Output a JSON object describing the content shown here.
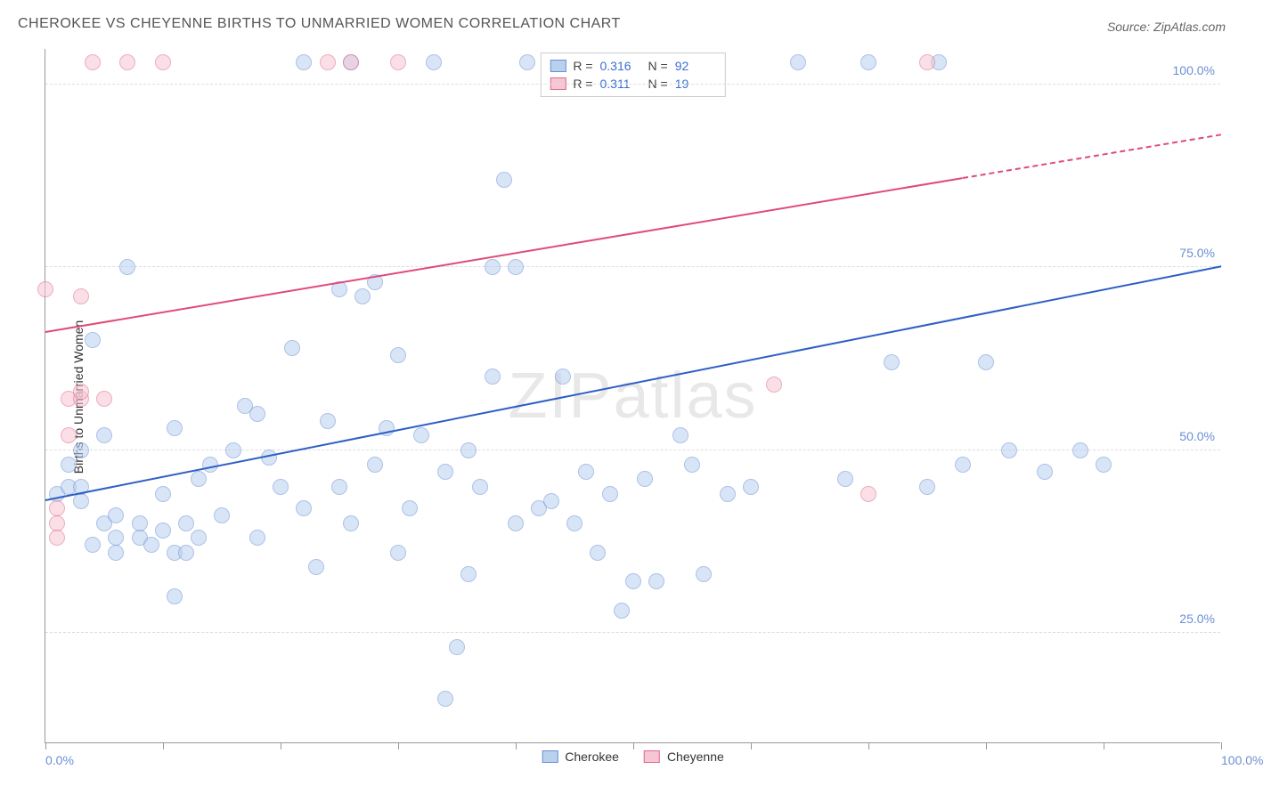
{
  "title": "CHEROKEE VS CHEYENNE BIRTHS TO UNMARRIED WOMEN CORRELATION CHART",
  "source_label": "Source: ZipAtlas.com",
  "watermark": "ZIPatlas",
  "ylabel": "Births to Unmarried Women",
  "chart": {
    "type": "scatter",
    "background_color": "#ffffff",
    "grid_color": "#dddddd",
    "axis_color": "#999999",
    "label_color": "#6b8fd4",
    "title_fontsize": 16,
    "label_fontsize": 14,
    "marker_radius": 9,
    "marker_opacity": 0.55,
    "xlim": [
      0,
      100
    ],
    "ylim": [
      10,
      105
    ],
    "xticks": [
      0,
      10,
      20,
      30,
      40,
      50,
      60,
      70,
      80,
      90,
      100
    ],
    "xtick_labels": {
      "0": "0.0%",
      "100": "100.0%"
    },
    "yticks": [
      25,
      50,
      75,
      100
    ],
    "ytick_labels": {
      "25": "25.0%",
      "50": "50.0%",
      "75": "75.0%",
      "100": "100.0%"
    },
    "legend_top": [
      {
        "swatch_fill": "#b9d0ef",
        "swatch_border": "#6b8fd4",
        "r_label": "R =",
        "r_value": "0.316",
        "n_label": "N =",
        "n_value": "92"
      },
      {
        "swatch_fill": "#f6c6d4",
        "swatch_border": "#e06a8a",
        "r_label": "R =",
        "r_value": "0.311",
        "n_label": "N =",
        "n_value": "19"
      }
    ],
    "legend_bottom": [
      {
        "swatch_fill": "#b9d0ef",
        "swatch_border": "#6b8fd4",
        "label": "Cherokee"
      },
      {
        "swatch_fill": "#f6c6d4",
        "swatch_border": "#e06a8a",
        "label": "Cheyenne"
      }
    ],
    "series": [
      {
        "name": "Cherokee",
        "marker_fill": "#b9d0ef",
        "marker_border": "#6b8fd4",
        "trend_color": "#2d5fc4",
        "trend": {
          "x1": 0,
          "y1": 43,
          "x2": 100,
          "y2": 75,
          "dash_from_x": null
        },
        "points": [
          [
            1,
            44
          ],
          [
            2,
            45
          ],
          [
            2,
            48
          ],
          [
            3,
            43
          ],
          [
            3,
            45
          ],
          [
            3,
            50
          ],
          [
            4,
            65
          ],
          [
            4,
            37
          ],
          [
            5,
            40
          ],
          [
            5,
            52
          ],
          [
            6,
            36
          ],
          [
            6,
            38
          ],
          [
            6,
            41
          ],
          [
            7,
            75
          ],
          [
            8,
            38
          ],
          [
            8,
            40
          ],
          [
            9,
            37
          ],
          [
            10,
            39
          ],
          [
            10,
            44
          ],
          [
            11,
            30
          ],
          [
            11,
            36
          ],
          [
            11,
            53
          ],
          [
            12,
            36
          ],
          [
            12,
            40
          ],
          [
            13,
            38
          ],
          [
            13,
            46
          ],
          [
            14,
            48
          ],
          [
            15,
            41
          ],
          [
            16,
            50
          ],
          [
            17,
            56
          ],
          [
            18,
            38
          ],
          [
            18,
            55
          ],
          [
            19,
            49
          ],
          [
            20,
            45
          ],
          [
            21,
            64
          ],
          [
            22,
            42
          ],
          [
            22,
            103
          ],
          [
            23,
            34
          ],
          [
            24,
            54
          ],
          [
            25,
            45
          ],
          [
            25,
            72
          ],
          [
            26,
            40
          ],
          [
            26,
            103
          ],
          [
            27,
            71
          ],
          [
            28,
            73
          ],
          [
            28,
            48
          ],
          [
            29,
            53
          ],
          [
            30,
            63
          ],
          [
            30,
            36
          ],
          [
            31,
            42
          ],
          [
            32,
            52
          ],
          [
            33,
            103
          ],
          [
            34,
            47
          ],
          [
            34,
            16
          ],
          [
            35,
            23
          ],
          [
            36,
            50
          ],
          [
            36,
            33
          ],
          [
            37,
            45
          ],
          [
            38,
            60
          ],
          [
            38,
            75
          ],
          [
            39,
            87
          ],
          [
            40,
            75
          ],
          [
            40,
            40
          ],
          [
            41,
            103
          ],
          [
            42,
            42
          ],
          [
            43,
            43
          ],
          [
            44,
            60
          ],
          [
            45,
            40
          ],
          [
            46,
            47
          ],
          [
            47,
            36
          ],
          [
            48,
            44
          ],
          [
            49,
            28
          ],
          [
            50,
            32
          ],
          [
            51,
            46
          ],
          [
            52,
            32
          ],
          [
            54,
            52
          ],
          [
            55,
            48
          ],
          [
            56,
            33
          ],
          [
            58,
            44
          ],
          [
            60,
            45
          ],
          [
            64,
            103
          ],
          [
            68,
            46
          ],
          [
            70,
            103
          ],
          [
            72,
            62
          ],
          [
            75,
            45
          ],
          [
            76,
            103
          ],
          [
            78,
            48
          ],
          [
            80,
            62
          ],
          [
            82,
            50
          ],
          [
            85,
            47
          ],
          [
            88,
            50
          ],
          [
            90,
            48
          ]
        ]
      },
      {
        "name": "Cheyenne",
        "marker_fill": "#f6c6d4",
        "marker_border": "#e06a8a",
        "trend_color": "#e04a78",
        "trend": {
          "x1": 0,
          "y1": 66,
          "x2": 100,
          "y2": 93,
          "dash_from_x": 78
        },
        "points": [
          [
            0,
            72
          ],
          [
            1,
            42
          ],
          [
            1,
            40
          ],
          [
            1,
            38
          ],
          [
            2,
            52
          ],
          [
            2,
            57
          ],
          [
            3,
            57
          ],
          [
            3,
            58
          ],
          [
            3,
            71
          ],
          [
            4,
            103
          ],
          [
            5,
            57
          ],
          [
            7,
            103
          ],
          [
            10,
            103
          ],
          [
            24,
            103
          ],
          [
            26,
            103
          ],
          [
            30,
            103
          ],
          [
            62,
            59
          ],
          [
            70,
            44
          ],
          [
            75,
            103
          ]
        ]
      }
    ]
  }
}
